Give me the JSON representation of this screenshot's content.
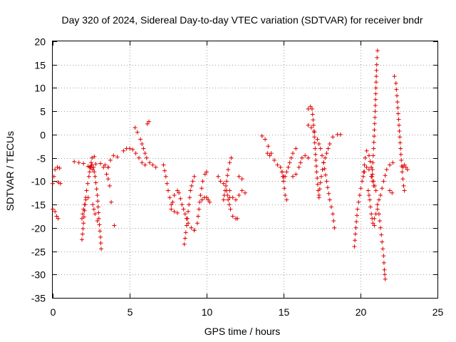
{
  "chart_data": {
    "type": "scatter",
    "title": "Day 320 of 2024, Sidereal Day-to-day VTEC variation (SDTVAR) for receiver bndr",
    "xlabel": "GPS time / hours",
    "ylabel": "SDTVAR / TECUs",
    "xlim": [
      0,
      25
    ],
    "ylim": [
      -35,
      20
    ],
    "xticks": [
      0,
      5,
      10,
      15,
      20,
      25
    ],
    "yticks": [
      20,
      15,
      10,
      5,
      0,
      -5,
      -10,
      -15,
      -20,
      -25,
      -30,
      -35
    ],
    "grid": true,
    "marker": "plus",
    "color": "#e00000",
    "segments": [
      [
        [
          0.0,
          -16
        ],
        [
          0.15,
          -16.5
        ],
        [
          0.25,
          -17.5
        ],
        [
          0.35,
          -18
        ]
      ],
      [
        [
          0.0,
          -10.5
        ],
        [
          0.08,
          -9
        ],
        [
          0.15,
          -7.5
        ],
        [
          0.3,
          -7
        ],
        [
          0.45,
          -7.2
        ]
      ],
      [
        [
          0.35,
          -10.2
        ],
        [
          0.5,
          -10.5
        ]
      ],
      [
        [
          1.4,
          -5.8
        ],
        [
          1.7,
          -6
        ],
        [
          2.0,
          -6.2
        ],
        [
          2.3,
          -6.8
        ],
        [
          2.5,
          -7
        ],
        [
          2.6,
          -7.5
        ]
      ],
      [
        [
          1.9,
          -22.5
        ],
        [
          2.0,
          -19
        ],
        [
          2.1,
          -15
        ],
        [
          2.2,
          -12
        ],
        [
          2.35,
          -9
        ],
        [
          2.45,
          -7
        ],
        [
          2.55,
          -5
        ],
        [
          2.7,
          -4.7
        ]
      ],
      [
        [
          1.9,
          -18
        ],
        [
          2.0,
          -16
        ],
        [
          2.15,
          -14
        ],
        [
          2.3,
          -13.5
        ]
      ],
      [
        [
          2.4,
          -7
        ],
        [
          2.55,
          -6.5
        ],
        [
          2.65,
          -7
        ],
        [
          2.75,
          -9
        ],
        [
          2.9,
          -13
        ],
        [
          3.0,
          -18
        ],
        [
          3.1,
          -22
        ],
        [
          3.15,
          -24.5
        ]
      ],
      [
        [
          2.6,
          -15
        ],
        [
          2.75,
          -17
        ],
        [
          2.9,
          -18.5
        ]
      ],
      [
        [
          2.8,
          -6.3
        ],
        [
          3.1,
          -6.2
        ],
        [
          3.4,
          -6.5
        ],
        [
          3.6,
          -7
        ]
      ],
      [
        [
          3.3,
          -7
        ],
        [
          3.5,
          -8.5
        ],
        [
          3.6,
          -9.5
        ],
        [
          3.7,
          -11
        ]
      ],
      [
        [
          3.6,
          -7
        ],
        [
          3.75,
          -5.5
        ],
        [
          3.95,
          -4.5
        ],
        [
          4.2,
          -4.8
        ]
      ],
      [
        [
          3.8,
          -14.5
        ]
      ],
      [
        [
          4.0,
          -19.5
        ]
      ],
      [
        [
          4.6,
          -3.5
        ],
        [
          4.8,
          -3
        ],
        [
          5.0,
          -3
        ],
        [
          5.2,
          -3.2
        ],
        [
          5.4,
          -4
        ],
        [
          5.6,
          -5
        ],
        [
          5.8,
          -6
        ],
        [
          6.0,
          -6.5
        ]
      ],
      [
        [
          5.35,
          1.5
        ],
        [
          5.5,
          0.5
        ],
        [
          5.7,
          -1
        ],
        [
          5.9,
          -3
        ],
        [
          6.1,
          -5
        ],
        [
          6.3,
          -6
        ],
        [
          6.5,
          -6.5
        ],
        [
          6.7,
          -7
        ]
      ],
      [
        [
          6.15,
          2.3
        ],
        [
          6.25,
          2.8
        ]
      ],
      [
        [
          7.2,
          -6.5
        ],
        [
          7.35,
          -9
        ],
        [
          7.5,
          -12
        ],
        [
          7.7,
          -15
        ],
        [
          7.9,
          -16.5
        ],
        [
          8.1,
          -16.8
        ]
      ],
      [
        [
          7.7,
          -16
        ],
        [
          7.9,
          -13
        ],
        [
          8.1,
          -12
        ],
        [
          8.2,
          -12.5
        ],
        [
          8.4,
          -15
        ],
        [
          8.6,
          -17
        ],
        [
          8.8,
          -19
        ],
        [
          9.0,
          -20
        ],
        [
          9.2,
          -20.5
        ]
      ],
      [
        [
          8.55,
          -23.5
        ],
        [
          8.65,
          -21
        ],
        [
          8.75,
          -18
        ],
        [
          8.85,
          -15
        ],
        [
          8.95,
          -12
        ],
        [
          9.1,
          -10
        ],
        [
          9.2,
          -9
        ]
      ],
      [
        [
          9.2,
          -20.5
        ],
        [
          9.4,
          -19
        ],
        [
          9.5,
          -16
        ],
        [
          9.6,
          -13
        ],
        [
          9.75,
          -10
        ],
        [
          9.9,
          -8.5
        ],
        [
          10.0,
          -8
        ]
      ],
      [
        [
          9.7,
          -14
        ],
        [
          9.85,
          -13.5
        ],
        [
          10.0,
          -13.5
        ],
        [
          10.1,
          -14
        ],
        [
          10.2,
          -14.5
        ]
      ],
      [
        [
          10.75,
          -9
        ],
        [
          10.9,
          -10
        ],
        [
          11.1,
          -10.5
        ],
        [
          11.3,
          -12
        ],
        [
          11.5,
          -13.5
        ]
      ],
      [
        [
          11.1,
          -14
        ],
        [
          11.2,
          -12
        ],
        [
          11.3,
          -10
        ],
        [
          11.4,
          -7.5
        ],
        [
          11.5,
          -6
        ],
        [
          11.6,
          -5
        ]
      ],
      [
        [
          11.3,
          -12
        ],
        [
          11.4,
          -14
        ],
        [
          11.55,
          -16
        ],
        [
          11.7,
          -17.5
        ],
        [
          11.9,
          -18
        ],
        [
          12.0,
          -18
        ]
      ],
      [
        [
          11.5,
          -12
        ],
        [
          11.7,
          -13.5
        ],
        [
          11.9,
          -14
        ],
        [
          12.1,
          -13
        ],
        [
          12.3,
          -12
        ],
        [
          12.5,
          -12.5
        ]
      ],
      [
        [
          12.1,
          -9
        ],
        [
          12.3,
          -9.5
        ]
      ],
      [
        [
          13.6,
          -0.3
        ],
        [
          13.8,
          -1
        ],
        [
          14.0,
          -2.5
        ],
        [
          14.2,
          -4
        ],
        [
          14.4,
          -5.5
        ],
        [
          14.6,
          -6.5
        ],
        [
          14.8,
          -7
        ],
        [
          15.0,
          -9
        ]
      ],
      [
        [
          13.95,
          -4
        ],
        [
          14.1,
          -4.5
        ]
      ],
      [
        [
          14.9,
          -8
        ],
        [
          15.0,
          -10
        ],
        [
          15.1,
          -13
        ],
        [
          15.2,
          -14
        ]
      ],
      [
        [
          15.0,
          -10
        ],
        [
          15.2,
          -8
        ],
        [
          15.4,
          -6
        ],
        [
          15.6,
          -4
        ],
        [
          15.8,
          -3
        ]
      ],
      [
        [
          15.6,
          -9
        ],
        [
          15.8,
          -8.5
        ],
        [
          16.0,
          -7
        ],
        [
          16.2,
          -5
        ],
        [
          16.4,
          -4.5
        ],
        [
          16.6,
          -5
        ]
      ],
      [
        [
          16.6,
          5.5
        ],
        [
          16.75,
          6
        ],
        [
          16.85,
          5.5
        ],
        [
          16.95,
          2
        ],
        [
          17.05,
          -3
        ],
        [
          17.15,
          -8
        ],
        [
          17.25,
          -12
        ],
        [
          17.3,
          -13.5
        ]
      ],
      [
        [
          16.6,
          2
        ],
        [
          16.8,
          1.5
        ],
        [
          17.0,
          0.5
        ],
        [
          17.2,
          -1
        ],
        [
          17.4,
          -3
        ],
        [
          17.6,
          -6
        ],
        [
          17.8,
          -10
        ],
        [
          18.0,
          -14
        ],
        [
          18.2,
          -17
        ],
        [
          18.3,
          -20
        ]
      ],
      [
        [
          17.3,
          -13
        ],
        [
          17.45,
          -9
        ],
        [
          17.6,
          -6
        ],
        [
          17.8,
          -4
        ],
        [
          18.0,
          -2
        ],
        [
          18.2,
          -0.5
        ],
        [
          18.5,
          0
        ],
        [
          18.7,
          0
        ]
      ],
      [
        [
          19.6,
          -24
        ],
        [
          19.7,
          -20
        ],
        [
          19.8,
          -16
        ],
        [
          19.95,
          -13
        ],
        [
          20.1,
          -10
        ],
        [
          20.25,
          -8
        ],
        [
          20.4,
          -7
        ],
        [
          20.55,
          -7.5
        ],
        [
          20.7,
          -9
        ],
        [
          20.85,
          -11
        ]
      ],
      [
        [
          20.2,
          -8
        ],
        [
          20.3,
          -5
        ],
        [
          20.4,
          -3.5
        ],
        [
          20.55,
          -4.5
        ],
        [
          20.7,
          -7
        ],
        [
          20.85,
          -10
        ],
        [
          21.0,
          -12
        ]
      ],
      [
        [
          20.5,
          -12
        ],
        [
          20.6,
          -14
        ],
        [
          20.7,
          -17
        ],
        [
          20.8,
          -19
        ],
        [
          20.9,
          -19.5
        ]
      ],
      [
        [
          20.75,
          -9
        ],
        [
          20.85,
          -3
        ],
        [
          20.9,
          1
        ],
        [
          20.95,
          5
        ],
        [
          21.0,
          10
        ],
        [
          21.05,
          15
        ],
        [
          21.1,
          18
        ]
      ],
      [
        [
          20.9,
          -18
        ],
        [
          21.0,
          -17
        ],
        [
          21.1,
          -16
        ],
        [
          21.2,
          -17
        ],
        [
          21.3,
          -20
        ],
        [
          21.4,
          -23
        ],
        [
          21.5,
          -26
        ],
        [
          21.55,
          -29
        ],
        [
          21.6,
          -31
        ]
      ],
      [
        [
          21.1,
          -15
        ],
        [
          21.3,
          -13
        ],
        [
          21.5,
          -10
        ],
        [
          21.7,
          -7.5
        ],
        [
          21.9,
          -6.5
        ],
        [
          22.1,
          -6
        ]
      ],
      [
        [
          21.9,
          -12
        ],
        [
          22.05,
          -12.5
        ]
      ],
      [
        [
          22.2,
          12.5
        ],
        [
          22.3,
          11
        ],
        [
          22.4,
          7
        ],
        [
          22.5,
          2
        ],
        [
          22.6,
          -3
        ],
        [
          22.7,
          -8
        ],
        [
          22.8,
          -11
        ],
        [
          22.85,
          -12
        ]
      ],
      [
        [
          22.75,
          -7
        ],
        [
          22.85,
          -6.5
        ],
        [
          22.95,
          -7
        ],
        [
          23.05,
          -7.5
        ]
      ]
    ]
  }
}
